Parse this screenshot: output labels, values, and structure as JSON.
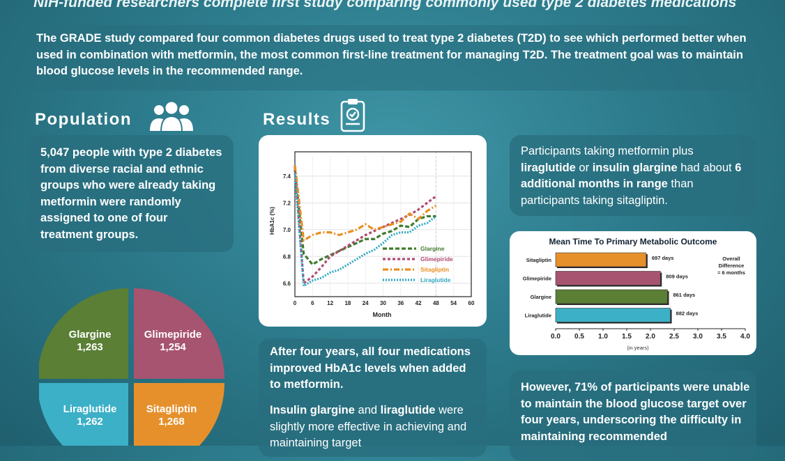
{
  "header": {
    "subtitle": "NIH-funded researchers complete first study comparing commonly used type 2 diabetes medications"
  },
  "intro": {
    "text": "The GRADE study compared four common diabetes drugs used to treat type 2 diabetes (T2D) to see which performed better when used in combination with metformin, the most common first-line treatment for managing T2D. The treatment goal was to maintain blood glucose levels in the recommended range."
  },
  "population": {
    "title": "Population",
    "icon": "people-group-icon",
    "text": "5,047 people with type 2 diabetes from diverse racial and ethnic groups who were already taking metformin were randomly assigned to one of four treatment groups.",
    "groups": [
      {
        "name": "Glargine",
        "count": "1,263",
        "color": "#5a7f35"
      },
      {
        "name": "Glimepiride",
        "count": "1,254",
        "color": "#a65470"
      },
      {
        "name": "Liraglutide",
        "count": "1,262",
        "color": "#3cb0c7"
      },
      {
        "name": "Sitagliptin",
        "count": "1,268",
        "color": "#e6902c"
      }
    ]
  },
  "results": {
    "title": "Results",
    "icon": "clipboard-check-icon",
    "four_years": {
      "text": "After four years, all four medications improved HbA1c levels when added to metformin."
    },
    "effective": {
      "part1": "Insulin glargine",
      "part2": " and ",
      "part3": "liraglutide",
      "part4": " were slightly more effective in achieving and maintaining target"
    },
    "months": {
      "part1": "Participants taking metformin plus ",
      "part2": "liraglutide",
      "part3": " or ",
      "part4": "insulin glargine",
      "part5": " had about ",
      "part6": "6 additional months in range",
      "part7": " than participants taking sitagliptin."
    },
    "however": {
      "text": "However, 71% of participants were unable to maintain the blood glucose target over four years, underscoring the difficulty in maintaining recommended"
    }
  },
  "chart_data": [
    {
      "type": "line",
      "xlabel": "Month",
      "ylabel": "HbA1c (%)",
      "xlim": [
        0,
        60
      ],
      "ylim": [
        6.5,
        7.55
      ],
      "x_ticks": [
        0,
        6,
        12,
        18,
        24,
        30,
        36,
        42,
        48,
        54,
        60
      ],
      "y_ticks": [
        6.6,
        6.8,
        7.0,
        7.2,
        7.4
      ],
      "grid": true,
      "legend": "center-right",
      "series": [
        {
          "name": "Glargine",
          "color": "#3f7b2d",
          "dash": "6,3",
          "x": [
            0,
            3,
            6,
            9,
            12,
            15,
            18,
            21,
            24,
            27,
            30,
            33,
            36,
            39,
            42,
            45,
            48
          ],
          "y": [
            7.45,
            6.82,
            6.74,
            6.78,
            6.81,
            6.84,
            6.87,
            6.9,
            6.93,
            6.93,
            6.97,
            6.99,
            7.03,
            7.02,
            7.08,
            7.1,
            7.1
          ]
        },
        {
          "name": "Glimepiride",
          "color": "#b04a73",
          "dash": "4,3",
          "x": [
            0,
            3,
            6,
            9,
            12,
            15,
            18,
            21,
            24,
            27,
            30,
            33,
            36,
            39,
            42,
            45,
            48
          ],
          "y": [
            7.47,
            6.6,
            6.65,
            6.72,
            6.8,
            6.84,
            6.88,
            6.92,
            6.96,
            6.99,
            7.02,
            7.05,
            7.08,
            7.11,
            7.15,
            7.2,
            7.25
          ]
        },
        {
          "name": "Sitagliptin",
          "color": "#e88f22",
          "dash": "8,3,2,3",
          "x": [
            0,
            3,
            6,
            9,
            12,
            15,
            18,
            21,
            24,
            27,
            30,
            33,
            36,
            39,
            42,
            45,
            48
          ],
          "y": [
            7.48,
            6.92,
            6.96,
            6.98,
            6.98,
            6.96,
            6.98,
            7.0,
            7.04,
            7.0,
            7.02,
            7.04,
            7.06,
            7.12,
            7.08,
            7.14,
            7.18
          ]
        },
        {
          "name": "Liraglutide",
          "color": "#2ea8c3",
          "dash": "2,2",
          "x": [
            0,
            3,
            6,
            9,
            12,
            15,
            18,
            21,
            24,
            27,
            30,
            33,
            36,
            39,
            42,
            45,
            48
          ],
          "y": [
            7.42,
            6.58,
            6.62,
            6.64,
            6.68,
            6.7,
            6.74,
            6.78,
            6.82,
            6.85,
            6.9,
            6.96,
            6.98,
            6.98,
            7.03,
            7.05,
            7.1
          ]
        }
      ]
    },
    {
      "type": "bar",
      "orientation": "horizontal",
      "title": "Mean Time To Primary Metabolic Outcome",
      "xlabel": "(in years)",
      "xlim": [
        0,
        4
      ],
      "x_ticks": [
        "0.0",
        "0.5",
        "1.0",
        "1.5",
        "2.0",
        "2.5",
        "3.0",
        "3.5",
        "4.0"
      ],
      "categories": [
        "Sitagliptin",
        "Glimepiride",
        "Glargine",
        "Liraglutide"
      ],
      "values": [
        1.91,
        2.21,
        2.36,
        2.42
      ],
      "value_labels": [
        "697 days",
        "809 days",
        "861 days",
        "882 days"
      ],
      "colors": [
        "#e6902c",
        "#a65470",
        "#5a7f35",
        "#3cb0c7"
      ],
      "annotation": {
        "line1": "Overall",
        "line2": "Difference",
        "line3": "= 6 months"
      }
    }
  ]
}
